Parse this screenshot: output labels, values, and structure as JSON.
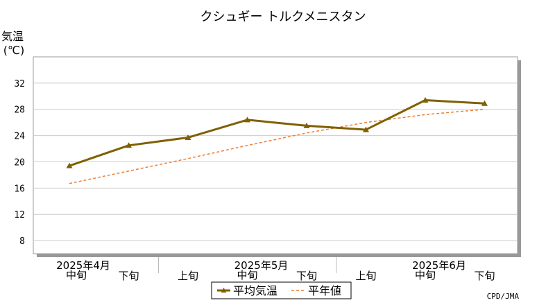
{
  "chart_data": {
    "type": "line",
    "title": "クシュギー トルクメニスタン",
    "ylabel": "気温",
    "yunit": "(℃)",
    "ylim": [
      6,
      36
    ],
    "yticks": [
      8,
      12,
      16,
      20,
      24,
      28,
      32
    ],
    "grid": true,
    "categories": [
      "中旬",
      "下旬",
      "上旬",
      "中旬",
      "下旬",
      "上旬",
      "中旬",
      "下旬"
    ],
    "month_labels": [
      "2025年4月",
      "2025年5月",
      "2025年6月"
    ],
    "series": [
      {
        "name": "平均気温",
        "color": "#7f6000",
        "marker": "triangle",
        "values": [
          19.4,
          22.5,
          23.7,
          26.4,
          25.5,
          24.9,
          29.4,
          28.9
        ]
      },
      {
        "name": "平年値",
        "color": "#ed7d31",
        "style": "dashed",
        "values": [
          16.7,
          18.6,
          20.5,
          22.5,
          24.4,
          26.0,
          27.2,
          28.0
        ]
      }
    ],
    "legend_position": "bottom-center",
    "credit": "CPD/JMA"
  }
}
